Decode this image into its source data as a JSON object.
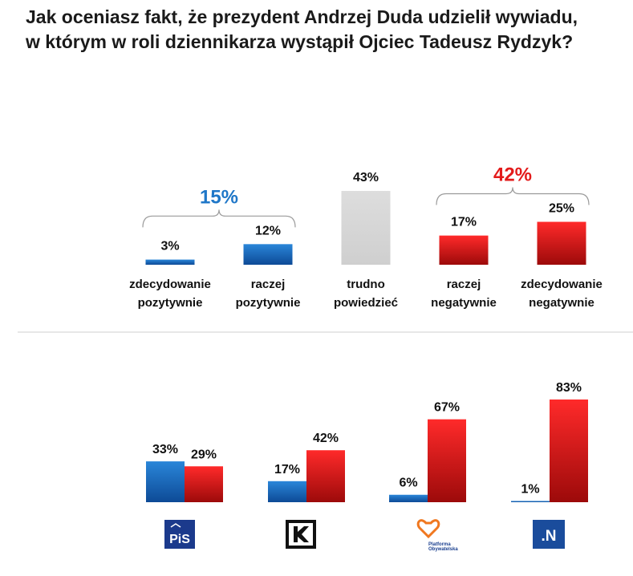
{
  "title": {
    "line1": "Jak oceniasz fakt, że prezydent Andrzej Duda udzielił wywiadu,",
    "line2": "w którym w roli dziennikarza wystąpił Ojciec Tadeusz Rydzyk?"
  },
  "chart_data": [
    {
      "type": "bar",
      "categories": [
        [
          "zdecydowanie",
          "pozytywnie"
        ],
        [
          "raczej",
          "pozytywnie"
        ],
        [
          "trudno",
          "powiedzieć"
        ],
        [
          "raczej",
          "negatywnie"
        ],
        [
          "zdecydowanie",
          "negatywnie"
        ]
      ],
      "values": [
        3,
        12,
        43,
        17,
        25
      ],
      "value_labels": [
        "3%",
        "12%",
        "43%",
        "17%",
        "25%"
      ],
      "colors": [
        "#1f6fc5",
        "#1f6fc5",
        "#d9d9d9",
        "#e31b1b",
        "#e31b1b"
      ],
      "groups": [
        {
          "label": "15%",
          "value": 15,
          "color": "#1f77c8",
          "from": 0,
          "to": 1
        },
        {
          "label": "42%",
          "value": 42,
          "color": "#e31b1b",
          "from": 3,
          "to": 4
        }
      ],
      "ylim": [
        0,
        43
      ]
    },
    {
      "type": "bar",
      "categories": [
        "PiS",
        "Kukiz'15",
        "Platforma Obywatelska",
        "Nowoczesna"
      ],
      "series": [
        {
          "name": "pozytywnie",
          "color": "#1f6fc5",
          "values": [
            33,
            17,
            6,
            1
          ],
          "labels": [
            "33%",
            "17%",
            "6%",
            "1%"
          ]
        },
        {
          "name": "negatywnie",
          "color": "#e31b1b",
          "values": [
            29,
            42,
            67,
            83
          ],
          "labels": [
            "29%",
            "42%",
            "67%",
            "83%"
          ]
        }
      ],
      "ylim": [
        0,
        83
      ]
    }
  ],
  "logos": {
    "pis": "PiS",
    "po_line1": "Platforma",
    "po_line2": "Obywatelska",
    "n": ".N"
  }
}
